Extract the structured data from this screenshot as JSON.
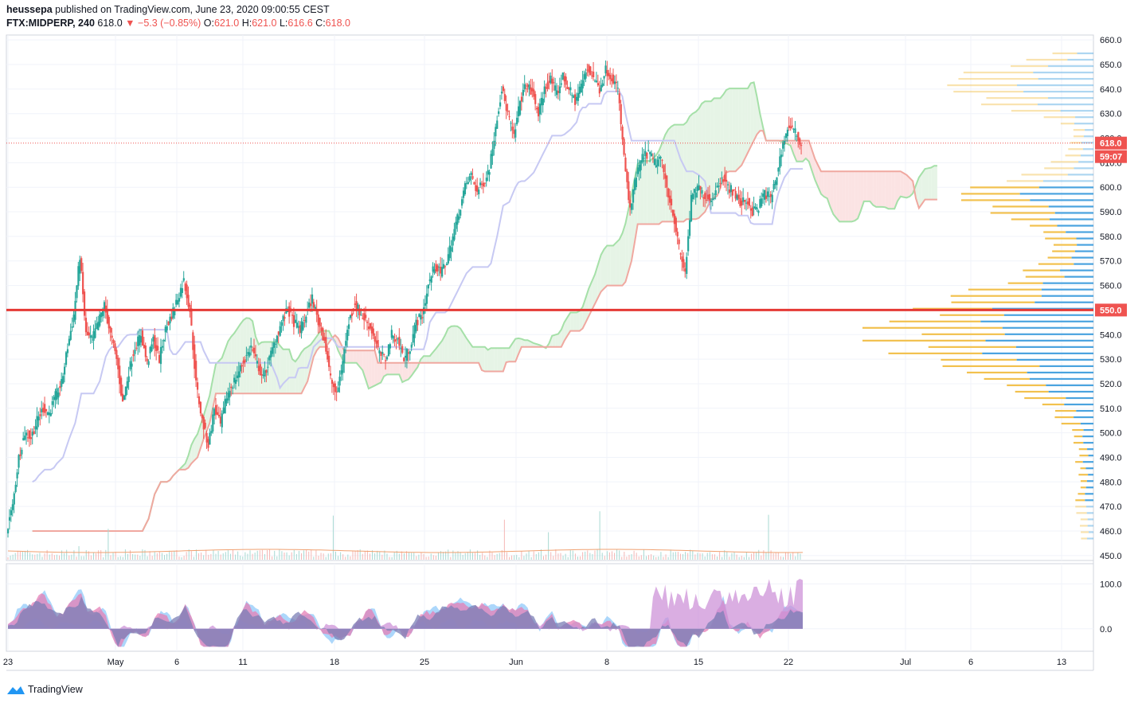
{
  "header": {
    "publisher": "heussepa",
    "published_text": "published on TradingView.com, June 23, 2020 09:00:55 CEST",
    "symbol": "FTX:MIDPERP, 240",
    "last": "618.0",
    "change": "−5.3 (−0.85%)",
    "o_label": "O:",
    "o_value": "621.0",
    "h_label": "H:",
    "h_value": "621.0",
    "l_label": "L:",
    "l_value": "616.6",
    "c_label": "C:",
    "c_value": "618.0"
  },
  "footer": {
    "brand": "TradingView"
  },
  "colors": {
    "up": "#26a69a",
    "down": "#ef5350",
    "kijun": "#c7c9f3",
    "span_a": "#a5e0a8",
    "span_b": "#f0a8a0",
    "cloud_green": "#e6f4e6",
    "cloud_red": "#fbe3e3",
    "level": "#e53935",
    "vp_up": "#4aa3df",
    "vp_down": "#f2c14e"
  },
  "chart_data": [
    {
      "type": "candlestick",
      "symbol": "FTX:MIDPERP",
      "interval": "240",
      "ylim": [
        448,
        662
      ],
      "y_ticks": [
        450,
        460,
        470,
        480,
        490,
        500,
        510,
        520,
        530,
        540,
        550,
        560,
        570,
        580,
        590,
        600,
        610,
        620,
        630,
        640,
        650,
        660
      ],
      "x_tick_labels": [
        "23",
        "May",
        "6",
        "11",
        "18",
        "25",
        "Jun",
        "8",
        "15",
        "22",
        "Jul",
        "6",
        "13"
      ],
      "price_labels": [
        {
          "value": 618.0,
          "text": "618.0",
          "sub": "59:07"
        },
        {
          "value": 550.0,
          "text": "550.0"
        }
      ],
      "horizontal_level": 550.0,
      "price_path": [
        [
          0,
          460
        ],
        [
          1,
          470
        ],
        [
          2,
          490
        ],
        [
          3,
          500
        ],
        [
          4,
          498
        ],
        [
          5,
          505
        ],
        [
          6,
          510
        ],
        [
          7,
          508
        ],
        [
          8,
          515
        ],
        [
          9,
          520
        ],
        [
          10,
          535
        ],
        [
          11,
          548
        ],
        [
          12,
          572
        ],
        [
          13,
          540
        ],
        [
          14,
          538
        ],
        [
          15,
          545
        ],
        [
          16,
          552
        ],
        [
          17,
          540
        ],
        [
          18,
          530
        ],
        [
          19,
          512
        ],
        [
          20,
          525
        ],
        [
          21,
          535
        ],
        [
          22,
          540
        ],
        [
          23,
          528
        ],
        [
          24,
          538
        ],
        [
          25,
          530
        ],
        [
          26,
          542
        ],
        [
          27,
          548
        ],
        [
          28,
          555
        ],
        [
          29,
          562
        ],
        [
          30,
          550
        ],
        [
          31,
          520
        ],
        [
          32,
          505
        ],
        [
          33,
          495
        ],
        [
          34,
          510
        ],
        [
          35,
          503
        ],
        [
          36,
          515
        ],
        [
          37,
          520
        ],
        [
          38,
          525
        ],
        [
          39,
          530
        ],
        [
          40,
          535
        ],
        [
          41,
          528
        ],
        [
          42,
          522
        ],
        [
          43,
          530
        ],
        [
          44,
          538
        ],
        [
          45,
          545
        ],
        [
          46,
          550
        ],
        [
          47,
          545
        ],
        [
          48,
          542
        ],
        [
          49,
          548
        ],
        [
          50,
          555
        ],
        [
          51,
          545
        ],
        [
          52,
          538
        ],
        [
          53,
          522
        ],
        [
          54,
          515
        ],
        [
          55,
          530
        ],
        [
          56,
          545
        ],
        [
          57,
          553
        ],
        [
          58,
          548
        ],
        [
          59,
          545
        ],
        [
          60,
          540
        ],
        [
          61,
          532
        ],
        [
          62,
          530
        ],
        [
          63,
          540
        ],
        [
          64,
          538
        ],
        [
          65,
          530
        ],
        [
          66,
          535
        ],
        [
          67,
          545
        ],
        [
          68,
          548
        ],
        [
          69,
          560
        ],
        [
          70,
          568
        ],
        [
          71,
          565
        ],
        [
          72,
          570
        ],
        [
          73,
          580
        ],
        [
          74,
          590
        ],
        [
          75,
          600
        ],
        [
          76,
          605
        ],
        [
          77,
          598
        ],
        [
          78,
          602
        ],
        [
          79,
          608
        ],
        [
          80,
          625
        ],
        [
          81,
          640
        ],
        [
          82,
          630
        ],
        [
          83,
          620
        ],
        [
          84,
          635
        ],
        [
          85,
          642
        ],
        [
          86,
          638
        ],
        [
          87,
          630
        ],
        [
          88,
          640
        ],
        [
          89,
          644
        ],
        [
          90,
          638
        ],
        [
          91,
          645
        ],
        [
          92,
          640
        ],
        [
          93,
          635
        ],
        [
          94,
          642
        ],
        [
          95,
          648
        ],
        [
          96,
          645
        ],
        [
          97,
          640
        ],
        [
          98,
          648
        ],
        [
          99,
          645
        ],
        [
          100,
          640
        ],
        [
          101,
          612
        ],
        [
          102,
          590
        ],
        [
          103,
          605
        ],
        [
          104,
          612
        ],
        [
          105,
          614
        ],
        [
          106,
          610
        ],
        [
          107,
          612
        ],
        [
          108,
          600
        ],
        [
          109,
          590
        ],
        [
          110,
          575
        ],
        [
          111,
          565
        ],
        [
          112,
          595
        ],
        [
          113,
          600
        ],
        [
          114,
          597
        ],
        [
          115,
          595
        ],
        [
          116,
          598
        ],
        [
          117,
          605
        ],
        [
          118,
          600
        ],
        [
          119,
          598
        ],
        [
          120,
          593
        ],
        [
          121,
          595
        ],
        [
          122,
          590
        ],
        [
          123,
          592
        ],
        [
          124,
          598
        ],
        [
          125,
          595
        ],
        [
          126,
          605
        ],
        [
          127,
          618
        ],
        [
          128,
          625
        ],
        [
          129,
          622
        ],
        [
          130,
          618
        ]
      ]
    },
    {
      "type": "area",
      "name": "oscillator",
      "ylim": [
        -50,
        145
      ],
      "y_ticks": [
        0,
        100
      ]
    }
  ]
}
